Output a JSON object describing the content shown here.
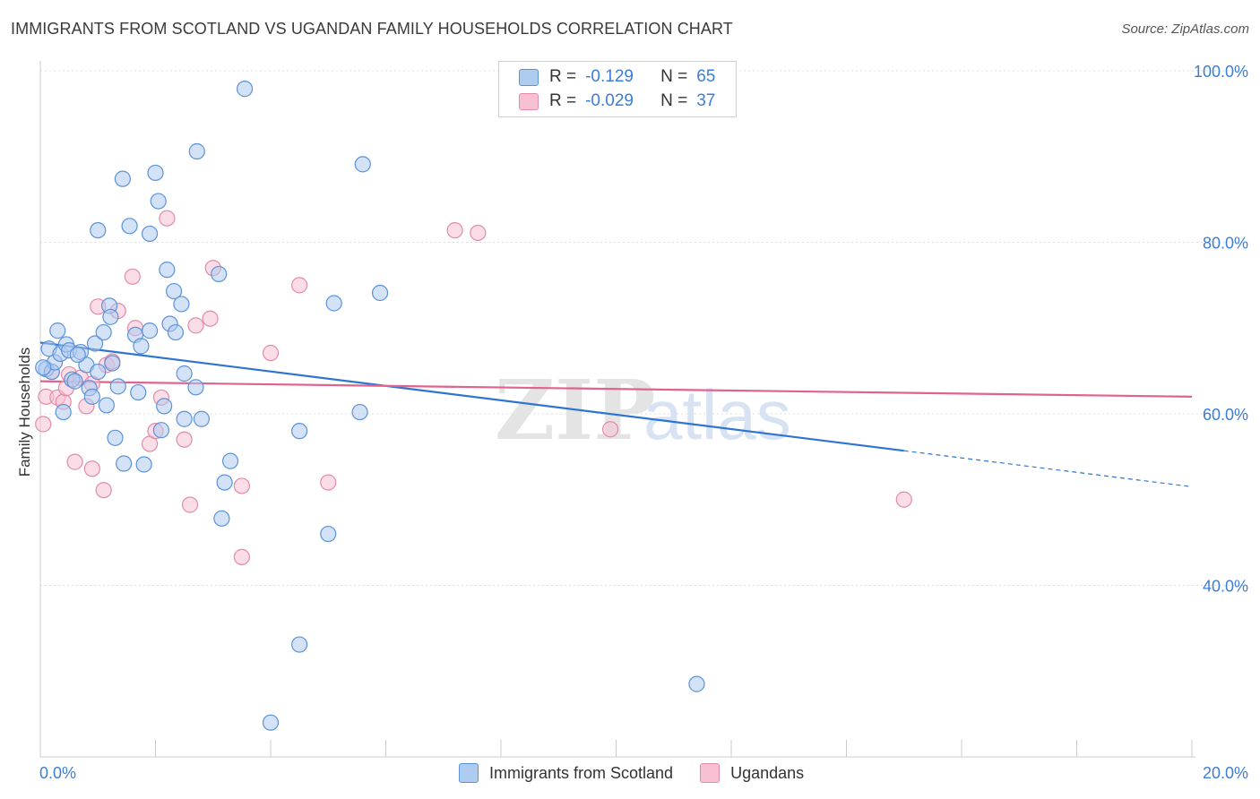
{
  "title": "IMMIGRANTS FROM SCOTLAND VS UGANDAN FAMILY HOUSEHOLDS CORRELATION CHART",
  "source": "Source: ZipAtlas.com",
  "watermark": {
    "zip": "ZIP",
    "atlas": "atlas"
  },
  "legend": {
    "rows": [
      {
        "r_label": "R =",
        "r_value": "-0.129",
        "n_label": "N =",
        "n_value": "65"
      },
      {
        "r_label": "R =",
        "r_value": "-0.029",
        "n_label": "N =",
        "n_value": "37"
      }
    ]
  },
  "colors": {
    "blue_fill": "#aecbf0",
    "blue_stroke": "#5b93d9",
    "blue_line": "#2f74d0",
    "pink_fill": "#f7c1d3",
    "pink_stroke": "#e48aa8",
    "pink_line": "#e0628f",
    "tick_label": "#3b7dd8",
    "grid": "#dddddd"
  },
  "chart_data": {
    "type": "scatter",
    "title": "IMMIGRANTS FROM SCOTLAND VS UGANDAN FAMILY HOUSEHOLDS CORRELATION CHART",
    "xlabel": "",
    "ylabel": "Family Households",
    "xlim": [
      0,
      20
    ],
    "ylim": [
      20,
      100
    ],
    "x_tick_labels": [
      "0.0%",
      "20.0%"
    ],
    "y_ticks": [
      40,
      60,
      80,
      100
    ],
    "y_tick_labels": [
      "40.0%",
      "60.0%",
      "80.0%",
      "100.0%"
    ],
    "grid": true,
    "legend_position": "top-center",
    "series": [
      {
        "name": "Immigrants from Scotland",
        "color": "#5b93d9",
        "points": [
          [
            0.1,
            65.2
          ],
          [
            0.15,
            67.6
          ],
          [
            0.2,
            64.9
          ],
          [
            0.25,
            66.0
          ],
          [
            0.3,
            69.7
          ],
          [
            0.35,
            67.0
          ],
          [
            0.4,
            60.2
          ],
          [
            0.45,
            68.1
          ],
          [
            0.5,
            67.4
          ],
          [
            0.55,
            64.0
          ],
          [
            0.7,
            67.2
          ],
          [
            0.8,
            65.7
          ],
          [
            0.85,
            63.0
          ],
          [
            0.9,
            62.0
          ],
          [
            0.95,
            68.2
          ],
          [
            1.0,
            64.9
          ],
          [
            1.0,
            81.4
          ],
          [
            1.1,
            69.5
          ],
          [
            1.15,
            61.0
          ],
          [
            1.2,
            72.6
          ],
          [
            1.22,
            71.3
          ],
          [
            1.25,
            65.9
          ],
          [
            1.3,
            57.2
          ],
          [
            1.35,
            63.2
          ],
          [
            1.43,
            87.4
          ],
          [
            1.45,
            54.2
          ],
          [
            1.55,
            81.9
          ],
          [
            1.65,
            69.2
          ],
          [
            1.7,
            62.5
          ],
          [
            1.75,
            67.9
          ],
          [
            1.8,
            54.1
          ],
          [
            1.9,
            69.7
          ],
          [
            1.9,
            81.0
          ],
          [
            2.0,
            88.1
          ],
          [
            2.05,
            84.8
          ],
          [
            2.1,
            58.1
          ],
          [
            2.15,
            60.9
          ],
          [
            2.2,
            76.8
          ],
          [
            2.25,
            70.5
          ],
          [
            2.32,
            74.3
          ],
          [
            2.35,
            69.5
          ],
          [
            2.45,
            72.8
          ],
          [
            2.5,
            64.7
          ],
          [
            2.5,
            59.4
          ],
          [
            2.7,
            63.1
          ],
          [
            2.72,
            90.6
          ],
          [
            2.8,
            59.4
          ],
          [
            3.15,
            47.8
          ],
          [
            3.1,
            76.3
          ],
          [
            3.2,
            52.0
          ],
          [
            3.3,
            54.5
          ],
          [
            3.55,
            97.9
          ],
          [
            4.0,
            24.0
          ],
          [
            4.5,
            33.1
          ],
          [
            4.5,
            58.0
          ],
          [
            5.0,
            46.0
          ],
          [
            5.1,
            72.9
          ],
          [
            5.55,
            60.2
          ],
          [
            5.6,
            89.1
          ],
          [
            5.9,
            74.1
          ],
          [
            9.9,
            100.0
          ],
          [
            11.4,
            28.5
          ],
          [
            0.05,
            65.4
          ],
          [
            0.65,
            66.9
          ],
          [
            0.6,
            63.8
          ]
        ]
      },
      {
        "name": "Ugandans",
        "color": "#e48aa8",
        "points": [
          [
            0.05,
            58.8
          ],
          [
            0.1,
            62.0
          ],
          [
            0.2,
            64.9
          ],
          [
            0.3,
            61.9
          ],
          [
            0.4,
            61.4
          ],
          [
            0.45,
            63.0
          ],
          [
            0.5,
            64.6
          ],
          [
            0.6,
            54.4
          ],
          [
            0.7,
            64.2
          ],
          [
            0.8,
            60.9
          ],
          [
            0.9,
            63.5
          ],
          [
            0.9,
            53.6
          ],
          [
            1.0,
            72.5
          ],
          [
            1.1,
            51.1
          ],
          [
            1.15,
            65.7
          ],
          [
            1.25,
            66.1
          ],
          [
            1.35,
            72.0
          ],
          [
            1.6,
            76.0
          ],
          [
            1.65,
            70.0
          ],
          [
            1.9,
            56.5
          ],
          [
            2.0,
            58.0
          ],
          [
            2.1,
            61.9
          ],
          [
            2.2,
            82.8
          ],
          [
            2.5,
            57.0
          ],
          [
            2.6,
            49.4
          ],
          [
            2.7,
            70.3
          ],
          [
            2.95,
            71.1
          ],
          [
            3.0,
            77.0
          ],
          [
            3.5,
            51.6
          ],
          [
            3.5,
            43.3
          ],
          [
            4.0,
            67.1
          ],
          [
            4.5,
            75.0
          ],
          [
            5.0,
            52.0
          ],
          [
            7.2,
            81.4
          ],
          [
            7.6,
            81.1
          ],
          [
            9.9,
            58.2
          ],
          [
            15.0,
            50.0
          ]
        ]
      }
    ],
    "trend_lines": [
      {
        "series": "Immigrants from Scotland",
        "x": [
          0,
          15
        ],
        "y": [
          68.3,
          55.7
        ],
        "dashed_extension_to": [
          20,
          51.5
        ]
      },
      {
        "series": "Ugandans",
        "x": [
          0,
          20
        ],
        "y": [
          63.8,
          62.0
        ]
      }
    ]
  }
}
